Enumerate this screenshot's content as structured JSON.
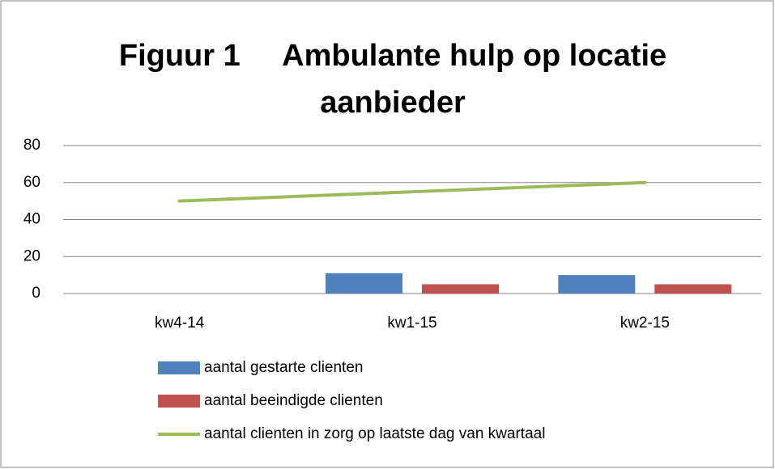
{
  "chart_data": {
    "type": "bar",
    "title": "Figuur 1     Ambulante hulp op locatie aanbieder",
    "categories": [
      "kw4-14",
      "kw1-15",
      "kw2-15"
    ],
    "series": [
      {
        "name": "aantal gestarte clienten",
        "type": "bar",
        "color": "#4f81bd",
        "values": [
          0,
          11,
          10
        ]
      },
      {
        "name": "aantal beeindigde clienten",
        "type": "bar",
        "color": "#c0504d",
        "values": [
          0,
          5,
          5
        ]
      },
      {
        "name": "aantal clienten in zorg op laatste dag van kwartaal",
        "type": "line",
        "color": "#9bbb59",
        "values": [
          50,
          55,
          60
        ]
      }
    ],
    "ylim": [
      0,
      80
    ],
    "yticks": [
      0,
      20,
      40,
      60,
      80
    ],
    "grid": true,
    "legend": "bottom"
  }
}
